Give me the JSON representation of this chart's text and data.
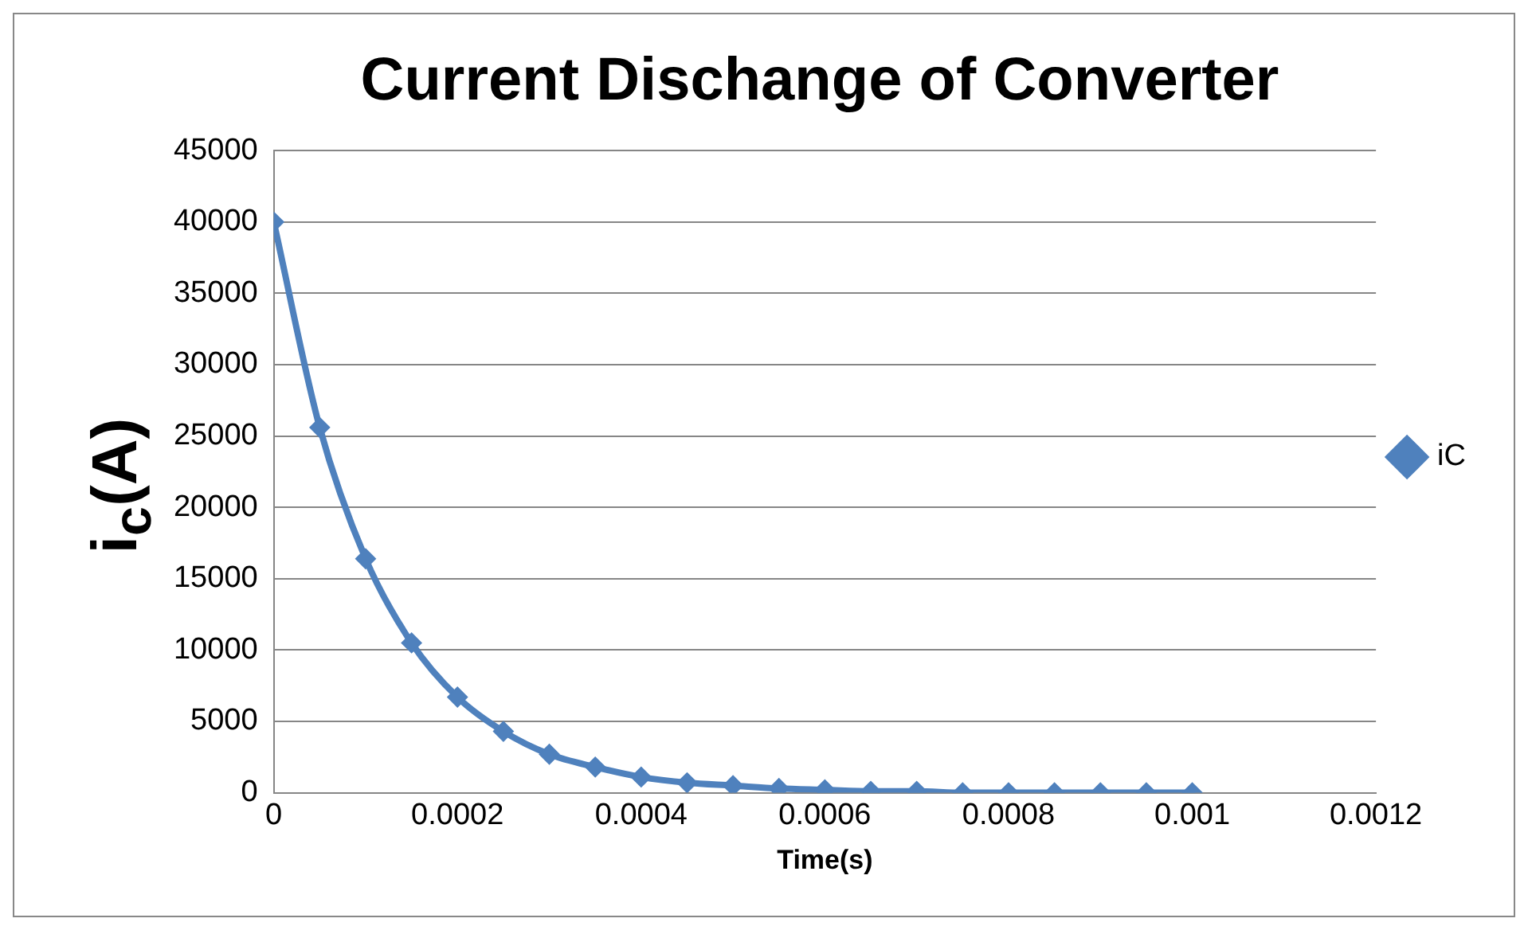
{
  "chart_data": {
    "type": "line",
    "title": "Current Dischange of Converter",
    "xlabel": "Time(s)",
    "ylabel": "i$_{c}$(A)",
    "x": [
      0,
      5e-05,
      0.0001,
      0.00015,
      0.0002,
      0.00025,
      0.0003,
      0.00035,
      0.0004,
      0.00045,
      0.0005,
      0.00055,
      0.0006,
      0.00065,
      0.0007,
      0.00075,
      0.0008,
      0.00085,
      0.0009,
      0.00095,
      0.001
    ],
    "series": [
      {
        "name": "iC",
        "color": "#4f81bd",
        "values": [
          40000,
          25600,
          16400,
          10500,
          6700,
          4300,
          2700,
          1800,
          1100,
          700,
          500,
          300,
          200,
          100,
          100,
          0,
          0,
          0,
          0,
          0,
          0
        ]
      }
    ],
    "xlim": [
      0,
      0.0012
    ],
    "xticks": [
      0,
      0.0002,
      0.0004,
      0.0006,
      0.0008,
      0.001,
      0.0012
    ],
    "ylim": [
      0,
      45000
    ],
    "yticks": [
      0,
      5000,
      10000,
      15000,
      20000,
      25000,
      30000,
      35000,
      40000,
      45000
    ],
    "grid": "y",
    "legend": "right",
    "marker": "diamond",
    "line_style": "solid"
  }
}
